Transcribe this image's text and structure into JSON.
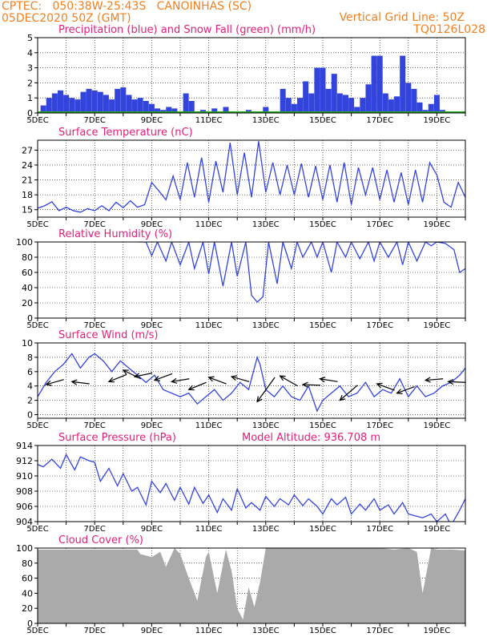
{
  "header": {
    "line1": "CPTEC:   050:38W-25:43S   CANOINHAS (SC)",
    "line2": "05DEC2020 50Z (GMT)",
    "right1": "Vertical Grid Line: 50Z",
    "right2": "TQ0126L028"
  },
  "colors": {
    "header": "#f08020",
    "title": "#e0207a",
    "series": "#3344dd",
    "snow": "#22aa22",
    "cloud": "#aaaaaa"
  },
  "time_axis": {
    "start_day": 5,
    "end_day": 20,
    "tick_labels": [
      "5DEC",
      "7DEC",
      "9DEC",
      "11DEC",
      "13DEC",
      "15DEC",
      "17DEC",
      "19DEC"
    ],
    "tick_days": [
      5,
      7,
      9,
      11,
      13,
      15,
      17,
      19
    ]
  },
  "chart_data": [
    {
      "id": "precip",
      "type": "bar",
      "title": "Precipitation (blue) and Snow Fall (green) (mm/h)",
      "ylim": [
        0,
        5
      ],
      "yticks": [
        0,
        1,
        2,
        3,
        4,
        5
      ],
      "series": [
        {
          "name": "Precipitation",
          "x": [
            5.2,
            5.4,
            5.6,
            5.8,
            6.0,
            6.2,
            6.4,
            6.6,
            6.8,
            7.0,
            7.2,
            7.4,
            7.6,
            7.8,
            8.0,
            8.2,
            8.4,
            8.6,
            8.8,
            9.0,
            9.2,
            9.4,
            9.6,
            9.8,
            10.2,
            10.4,
            10.8,
            11.2,
            11.6,
            12.4,
            13.0,
            13.6,
            13.8,
            14.0,
            14.2,
            14.4,
            14.6,
            14.8,
            15.0,
            15.2,
            15.4,
            15.6,
            15.8,
            16.0,
            16.2,
            16.4,
            16.6,
            16.8,
            17.0,
            17.2,
            17.4,
            17.6,
            17.8,
            18.0,
            18.2,
            18.4,
            18.6,
            18.8,
            19.0,
            19.2
          ],
          "values": [
            0.5,
            1.0,
            1.3,
            1.5,
            1.2,
            1.0,
            0.9,
            1.4,
            1.6,
            1.5,
            1.4,
            1.2,
            0.9,
            1.6,
            1.7,
            1.2,
            0.9,
            1.0,
            0.8,
            0.6,
            0.3,
            0.2,
            0.4,
            0.3,
            1.3,
            0.8,
            0.2,
            0.3,
            0.4,
            0.2,
            0.4,
            1.6,
            1.0,
            0.6,
            1.0,
            2.1,
            1.3,
            3.0,
            3.0,
            1.6,
            2.6,
            1.3,
            1.2,
            1.0,
            0.4,
            1.0,
            1.9,
            3.8,
            3.8,
            1.3,
            0.9,
            1.1,
            3.8,
            2.0,
            1.6,
            0.7,
            0.2,
            0.6,
            1.2,
            0.2
          ]
        },
        {
          "name": "Snow Fall",
          "x": [],
          "values": []
        }
      ]
    },
    {
      "id": "temp",
      "type": "line",
      "title": "Surface Temperature (nC)",
      "ylim": [
        13.5,
        29
      ],
      "yticks": [
        15,
        18,
        21,
        24,
        27
      ],
      "x": [
        5.0,
        5.25,
        5.5,
        5.75,
        6.0,
        6.25,
        6.5,
        6.75,
        7.0,
        7.25,
        7.5,
        7.75,
        8.0,
        8.25,
        8.5,
        8.75,
        9.0,
        9.25,
        9.5,
        9.75,
        10.0,
        10.25,
        10.5,
        10.75,
        11.0,
        11.25,
        11.5,
        11.75,
        12.0,
        12.25,
        12.5,
        12.75,
        13.0,
        13.25,
        13.5,
        13.75,
        14.0,
        14.25,
        14.5,
        14.75,
        15.0,
        15.25,
        15.5,
        15.75,
        16.0,
        16.25,
        16.5,
        16.75,
        17.0,
        17.25,
        17.5,
        17.75,
        18.0,
        18.25,
        18.5,
        18.75,
        19.0,
        19.25,
        19.5,
        19.75,
        20.0
      ],
      "series": [
        {
          "name": "",
          "values": [
            15.3,
            15.8,
            16.6,
            14.8,
            15.5,
            14.8,
            14.5,
            15.2,
            14.8,
            15.8,
            14.8,
            16.5,
            15.4,
            16.8,
            15.5,
            16.0,
            20.5,
            18.8,
            17.0,
            21.8,
            17.0,
            24.5,
            17.5,
            25.5,
            16.5,
            24.8,
            18.5,
            28.5,
            18.0,
            26.5,
            17.5,
            28.8,
            18.5,
            24.5,
            18.0,
            24.0,
            18.0,
            24.3,
            17.5,
            23.8,
            17.0,
            24.0,
            16.5,
            24.5,
            16.0,
            23.5,
            18.0,
            23.5,
            17.0,
            23.0,
            16.5,
            22.5,
            16.0,
            23.0,
            16.5,
            24.5,
            22.0,
            16.5,
            15.5,
            20.5,
            17.5
          ]
        }
      ]
    },
    {
      "id": "rh",
      "type": "line",
      "title": "Relative Humidity (%)",
      "ylim": [
        0,
        100
      ],
      "yticks": [
        0,
        20,
        40,
        60,
        80,
        100
      ],
      "x": [
        8.5,
        8.8,
        9.0,
        9.2,
        9.5,
        9.7,
        10.0,
        10.3,
        10.5,
        10.8,
        11.0,
        11.2,
        11.5,
        11.8,
        12.0,
        12.3,
        12.5,
        12.7,
        12.9,
        13.1,
        13.4,
        13.6,
        13.9,
        14.1,
        14.3,
        14.6,
        14.8,
        15.0,
        15.3,
        15.5,
        15.8,
        16.0,
        16.3,
        16.6,
        16.8,
        17.0,
        17.3,
        17.6,
        17.8,
        18.0,
        18.3,
        18.6,
        18.8,
        19.0,
        19.3,
        19.6,
        19.8,
        20.0
      ],
      "series": [
        {
          "name": "",
          "values": [
            100,
            100,
            82,
            100,
            75,
            100,
            70,
            100,
            65,
            100,
            58,
            100,
            42,
            100,
            55,
            100,
            30,
            21,
            28,
            100,
            45,
            100,
            65,
            100,
            80,
            100,
            80,
            100,
            60,
            100,
            80,
            100,
            78,
            100,
            75,
            100,
            80,
            100,
            70,
            100,
            75,
            100,
            95,
            100,
            98,
            90,
            60,
            65
          ]
        }
      ]
    },
    {
      "id": "wind",
      "type": "line",
      "title": "Surface Wind (m/s)",
      "ylim": [
        -0.5,
        10
      ],
      "yticks": [
        0,
        2,
        4,
        6,
        8,
        10
      ],
      "x": [
        5.0,
        5.3,
        5.6,
        5.9,
        6.2,
        6.5,
        6.8,
        7.0,
        7.3,
        7.6,
        7.9,
        8.2,
        8.5,
        8.8,
        9.1,
        9.4,
        9.7,
        10.0,
        10.3,
        10.6,
        10.9,
        11.2,
        11.5,
        11.8,
        12.1,
        12.4,
        12.7,
        12.8,
        13.0,
        13.3,
        13.6,
        13.9,
        14.2,
        14.5,
        14.8,
        15.0,
        15.3,
        15.6,
        15.9,
        16.2,
        16.5,
        16.8,
        17.1,
        17.4,
        17.7,
        18.0,
        18.3,
        18.6,
        18.9,
        19.2,
        19.5,
        19.8,
        20.0
      ],
      "series": [
        {
          "name": "",
          "values": [
            2.5,
            4.5,
            6.0,
            7.0,
            8.5,
            6.5,
            8.0,
            8.5,
            7.5,
            6.0,
            7.5,
            6.5,
            5.5,
            4.5,
            5.5,
            3.5,
            3.0,
            2.5,
            3.0,
            1.5,
            2.5,
            3.5,
            2.0,
            3.0,
            4.5,
            3.5,
            8.0,
            7.0,
            3.5,
            2.5,
            4.0,
            2.5,
            2.0,
            4.0,
            0.5,
            2.0,
            3.0,
            4.0,
            2.5,
            3.0,
            4.5,
            2.5,
            3.5,
            3.0,
            5.0,
            2.5,
            4.0,
            2.5,
            3.0,
            4.0,
            4.5,
            5.5,
            6.5
          ]
        }
      ],
      "vectors": [
        [
          5.3,
          4.9,
          4.2
        ],
        [
          6.2,
          4.3,
          4.6
        ],
        [
          7.5,
          5.6,
          4.6
        ],
        [
          8.0,
          5.0,
          6.2
        ],
        [
          8.4,
          5.8,
          5.3
        ],
        [
          9.1,
          5.7,
          4.8
        ],
        [
          9.7,
          5.0,
          4.6
        ],
        [
          10.3,
          4.5,
          3.5
        ],
        [
          11.0,
          4.3,
          5.2
        ],
        [
          11.8,
          4.6,
          5.3
        ],
        [
          12.7,
          5.2,
          1.8
        ],
        [
          13.5,
          4.0,
          5.4
        ],
        [
          14.3,
          4.1,
          4.2
        ],
        [
          14.9,
          4.6,
          5.0
        ],
        [
          15.6,
          4.1,
          2.0
        ],
        [
          16.9,
          3.4,
          4.3
        ],
        [
          17.6,
          3.9,
          3.0
        ],
        [
          18.6,
          5.0,
          4.8
        ],
        [
          19.4,
          4.5,
          4.6
        ]
      ]
    },
    {
      "id": "pres",
      "type": "line",
      "title": "Surface Pressure (hPa)",
      "annotation": "Model Altitude: 936.708 m",
      "ylim": [
        904,
        914
      ],
      "yticks": [
        904,
        906,
        908,
        910,
        912,
        914
      ],
      "x": [
        5.0,
        5.2,
        5.5,
        5.8,
        6.0,
        6.3,
        6.5,
        6.8,
        7.0,
        7.2,
        7.5,
        7.8,
        8.0,
        8.3,
        8.5,
        8.8,
        9.0,
        9.3,
        9.5,
        9.8,
        10.0,
        10.3,
        10.5,
        10.8,
        11.0,
        11.3,
        11.5,
        11.8,
        12.0,
        12.3,
        12.5,
        12.8,
        13.0,
        13.3,
        13.5,
        13.8,
        14.0,
        14.3,
        14.5,
        14.8,
        15.0,
        15.3,
        15.5,
        15.8,
        16.0,
        16.3,
        16.5,
        16.8,
        17.0,
        17.3,
        17.5,
        17.8,
        18.0,
        18.3,
        18.5,
        18.8,
        19.0,
        19.3,
        19.5,
        19.8,
        20.0
      ],
      "series": [
        {
          "name": "",
          "values": [
            911.5,
            911.2,
            912.2,
            911.0,
            912.8,
            910.8,
            912.5,
            912.0,
            911.8,
            909.3,
            911.0,
            908.7,
            910.3,
            908.0,
            908.5,
            906.2,
            909.3,
            907.8,
            909.0,
            906.8,
            908.5,
            906.3,
            908.5,
            906.4,
            907.5,
            905.2,
            907.0,
            905.5,
            908.3,
            905.8,
            906.5,
            905.5,
            907.3,
            906.0,
            907.0,
            906.2,
            907.5,
            906.1,
            907.0,
            906.0,
            905.0,
            907.0,
            906.2,
            907.2,
            905.0,
            906.3,
            905.5,
            907.0,
            905.5,
            906.2,
            905.0,
            906.5,
            905.0,
            904.7,
            904.5,
            905.0,
            904.0,
            905.0,
            903.5,
            905.5,
            907.0
          ]
        }
      ]
    },
    {
      "id": "cloud",
      "type": "area",
      "title": "Cloud Cover (%)",
      "ylim": [
        0,
        100
      ],
      "yticks": [
        0,
        20,
        40,
        60,
        80,
        100
      ],
      "x": [
        5.0,
        8.5,
        8.6,
        9.0,
        9.3,
        9.5,
        9.8,
        10.0,
        10.3,
        10.6,
        10.9,
        11.0,
        11.3,
        11.6,
        11.8,
        12.0,
        12.2,
        12.4,
        12.6,
        12.8,
        13.0,
        13.2,
        13.4,
        13.6,
        14.0,
        14.5,
        15.0,
        15.5,
        16.0,
        16.5,
        17.0,
        17.5,
        18.0,
        18.3,
        18.5,
        18.8,
        19.0,
        19.5,
        20.0
      ],
      "series": [
        {
          "name": "",
          "values": [
            98,
            98,
            92,
            88,
            95,
            75,
            100,
            92,
            60,
            30,
            88,
            95,
            40,
            98,
            70,
            20,
            5,
            48,
            22,
            55,
            100,
            100,
            100,
            100,
            100,
            100,
            100,
            100,
            100,
            100,
            100,
            98,
            100,
            95,
            40,
            100,
            98,
            98,
            97
          ]
        }
      ]
    }
  ]
}
